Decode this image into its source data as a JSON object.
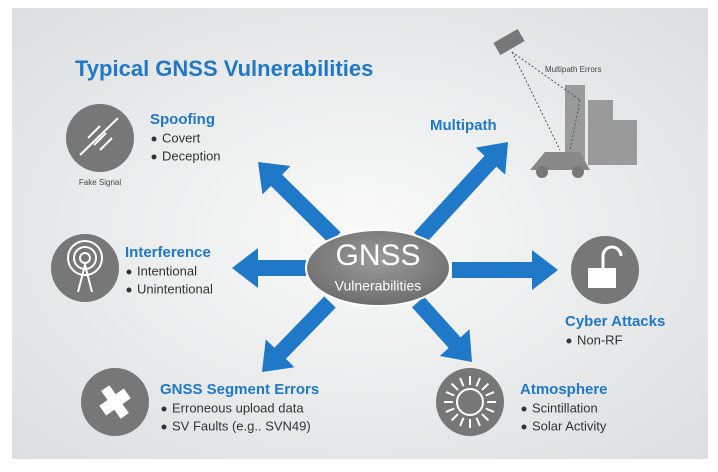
{
  "header": {
    "title": "Typical GNSS Vulnerabilities"
  },
  "center": {
    "title": "GNSS",
    "subtitle": "Vulnerabilities"
  },
  "nodes": [
    {
      "label": "Spoofing",
      "items": [
        "Covert",
        "Deception"
      ],
      "caption": "Fake Signal"
    },
    {
      "label": "Multipath",
      "items": [],
      "caption": "Multipath Errors"
    },
    {
      "label": "Interference",
      "items": [
        "Intentional",
        "Unintentional"
      ]
    },
    {
      "label": "Cyber Attacks",
      "items": [
        "Non-RF"
      ]
    },
    {
      "label": "GNSS Segment Errors",
      "items": [
        "Erroneous upload data",
        "SV Faults (e.g.. SVN49)"
      ]
    },
    {
      "label": "Atmosphere",
      "items": [
        "Scintillation",
        "Solar Activity"
      ]
    }
  ]
}
